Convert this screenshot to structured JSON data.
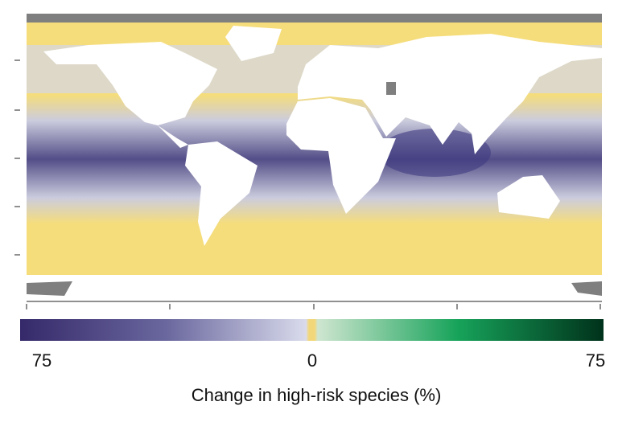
{
  "colorbar": {
    "tick_labels": [
      "75",
      "0",
      "75"
    ],
    "label": "Change in high-risk species (%)"
  }
}
